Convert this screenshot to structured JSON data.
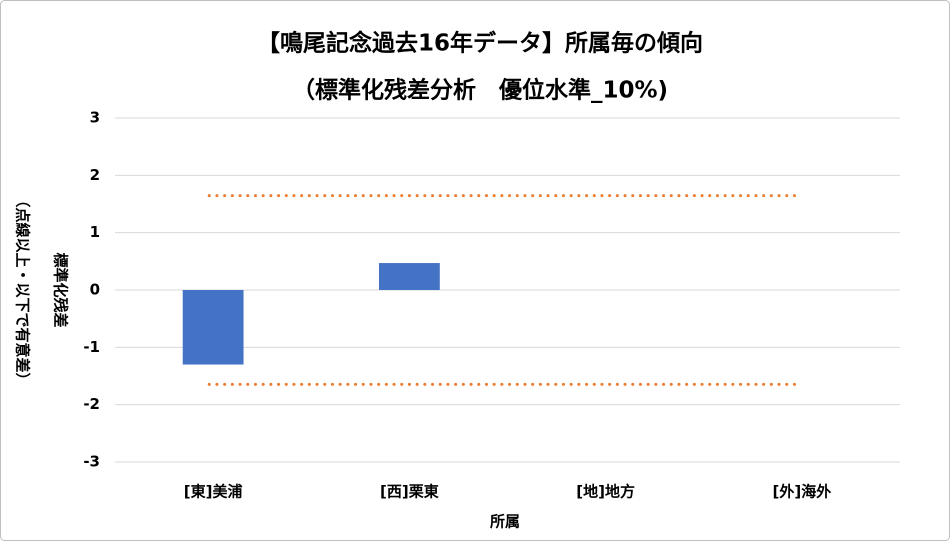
{
  "chart_data": {
    "type": "bar",
    "title": "【鳴尾記念過去16年データ】所属毎の傾向",
    "subtitle": "（標準化残差分析　優位水準_10%)",
    "y_label": [
      "標準化残差",
      "（点線以上・以下で有意差）"
    ],
    "x_label": "所属",
    "categories": [
      "[東]美浦",
      "[西]栗東",
      "[地]地方",
      "[外]海外"
    ],
    "values": [
      -1.3,
      0.47,
      null,
      null
    ],
    "color": "#4472c4",
    "reference_lines": [
      1.645,
      -1.645
    ],
    "reference_color": "#ed7d31",
    "ylim": [
      -3,
      3
    ],
    "yticks": [
      -3,
      -2,
      -1,
      0,
      1,
      2,
      3
    ],
    "grid": true
  }
}
